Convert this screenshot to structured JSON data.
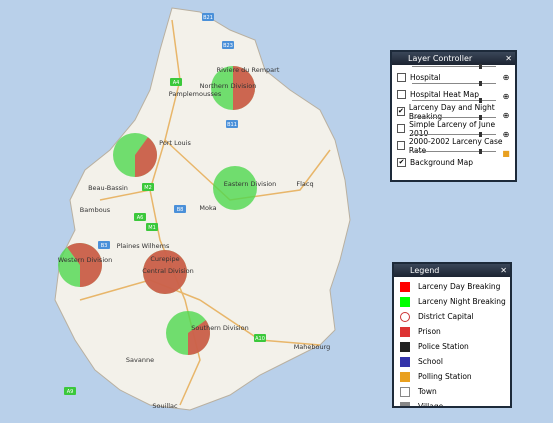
{
  "map": {
    "labels": [
      "Riviere du Rempart",
      "Northern Division",
      "Pamplemousses",
      "Port Louis",
      "Beau-Bassin",
      "Bambous",
      "Moka",
      "Eastern Division",
      "Flacq",
      "Plaines Wilhems",
      "Western Division",
      "Curepipe",
      "Central Division",
      "Southern Division",
      "Mahebourg",
      "Savanne",
      "Souillac"
    ],
    "roads": [
      "A4",
      "M2",
      "A10",
      "A9",
      "B23",
      "B21",
      "B11",
      "A6",
      "M1",
      "B3",
      "B8"
    ]
  },
  "layer_controller": {
    "title": "Layer Controller",
    "layers": [
      {
        "name": "Hospital",
        "checked": false
      },
      {
        "name": "Hospital Heat Map",
        "checked": false
      },
      {
        "name": "Larceny Day and Night Breaking",
        "checked": true
      },
      {
        "name": "Simple Larceny of June 2010",
        "checked": false
      },
      {
        "name": "2000-2002 Larceny Case Rate",
        "checked": false
      },
      {
        "name": "Background Map",
        "checked": true
      }
    ]
  },
  "legend": {
    "title": "Legend",
    "items": [
      "Larceny Day Breaking",
      "Larceny Night Breaking",
      "District Capital",
      "Prison",
      "Police Station",
      "School",
      "Polling Station",
      "Town",
      "Village"
    ]
  }
}
